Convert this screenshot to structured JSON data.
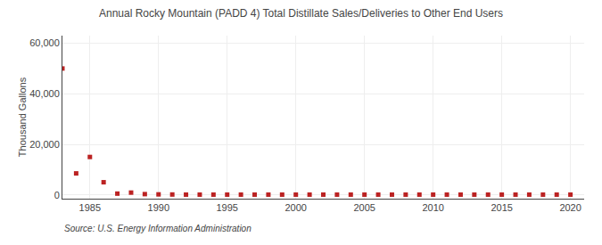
{
  "chart_data": {
    "type": "scatter",
    "title": "Annual Rocky Mountain (PADD 4) Total Distillate Sales/Deliveries to Other End Users",
    "ylabel": "Thousand Gallons",
    "annotations": [
      "Source: U.S. Energy Information Administration"
    ],
    "x": [
      1983,
      1984,
      1985,
      1986,
      1987,
      1988,
      1989,
      1990,
      1991,
      1992,
      1993,
      1994,
      1995,
      1996,
      1997,
      1998,
      1999,
      2000,
      2001,
      2002,
      2003,
      2004,
      2005,
      2006,
      2007,
      2008,
      2009,
      2010,
      2011,
      2012,
      2013,
      2014,
      2015,
      2016,
      2017,
      2018,
      2019,
      2020
    ],
    "values": [
      50000,
      8500,
      15000,
      5000,
      500,
      900,
      300,
      200,
      150,
      100,
      100,
      100,
      100,
      100,
      100,
      100,
      100,
      100,
      100,
      100,
      100,
      100,
      100,
      100,
      100,
      100,
      100,
      100,
      100,
      100,
      100,
      100,
      100,
      100,
      100,
      100,
      100,
      100
    ],
    "color": "#bb2222",
    "marker": "square",
    "xlim": [
      1983,
      2021
    ],
    "ylim": [
      -1500,
      63000
    ],
    "xticks": [
      1985,
      1990,
      1995,
      2000,
      2005,
      2010,
      2015,
      2020
    ],
    "yticks": [
      0,
      {
        "value": 20000,
        "label": "20,000"
      },
      {
        "value": 40000,
        "label": "40,000"
      },
      {
        "value": 60000,
        "label": "60,000"
      }
    ],
    "grid": true
  }
}
